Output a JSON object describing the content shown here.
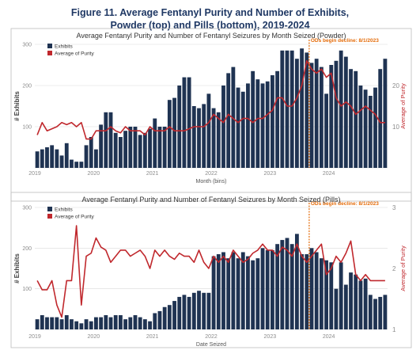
{
  "figure_title": {
    "line1": "Figure 11. Average Fentanyl Purity and Number of Exhibits,",
    "line2": "Powder (top) and Pills (bottom), 2019-2024"
  },
  "chart_data": [
    {
      "type": "bar",
      "title": "Average Fentanyl Purity and Number of Fentanyl Seizures by Month Seized (Powder)",
      "xlabel": "Month (bins)",
      "ylabel": "# Exhibits",
      "y2label": "Average of Purity",
      "x_tick_labels": [
        "2019",
        "2020",
        "2021",
        "2022",
        "2023",
        "2024"
      ],
      "y_ticks": [
        "100",
        "200",
        "300"
      ],
      "y2_ticks": [
        "10",
        "20"
      ],
      "ylim": [
        0,
        300
      ],
      "y2lim": [
        0,
        30
      ],
      "x_start_month": "2019-01",
      "marker_label": "ODs begin decline: 8/1/2023",
      "marker_month": "2023-08",
      "legend": [
        "Exhibits",
        "Average of Purity"
      ],
      "colors": {
        "bars": "#1f3352",
        "line": "#c0282d",
        "marker": "#e46c0a"
      },
      "series": [
        {
          "name": "Exhibits",
          "values": [
            40,
            45,
            50,
            55,
            45,
            30,
            60,
            20,
            15,
            15,
            55,
            75,
            45,
            105,
            135,
            135,
            85,
            75,
            90,
            100,
            100,
            80,
            85,
            95,
            120,
            100,
            100,
            165,
            170,
            200,
            220,
            220,
            150,
            145,
            155,
            180,
            145,
            135,
            200,
            230,
            245,
            195,
            185,
            205,
            235,
            215,
            205,
            210,
            225,
            235,
            285,
            285,
            285,
            265,
            290,
            280,
            255,
            265,
            245,
            180,
            250,
            260,
            285,
            270,
            240,
            235,
            200,
            190,
            175,
            195,
            240,
            265
          ]
        },
        {
          "name": "Average of Purity",
          "values": [
            8,
            11,
            9,
            9.5,
            10,
            11,
            10.5,
            11,
            10,
            11,
            7,
            7,
            9,
            9,
            9,
            10,
            9,
            8.5,
            10,
            9,
            9,
            9,
            8,
            10,
            9,
            9,
            9,
            10,
            9,
            9,
            9,
            9.5,
            10,
            10,
            10,
            11,
            13,
            12,
            11,
            13,
            12,
            11,
            12,
            12,
            11,
            12,
            12,
            13,
            14,
            17,
            17,
            15,
            15,
            17,
            20,
            26,
            24,
            23,
            24,
            22,
            23,
            17,
            15,
            16,
            15,
            13,
            14,
            15,
            14,
            13,
            11,
            11
          ]
        }
      ]
    },
    {
      "type": "bar",
      "title": "Average Fentanyl Purity and Number of Fentanyl Seizures by Month Seized (Pills)",
      "xlabel": "Date Seized",
      "ylabel": "# Exhibits",
      "y2label": "Average of Purity",
      "x_tick_labels": [
        "2019",
        "2020",
        "2021",
        "2022",
        "2023",
        "2024"
      ],
      "y_ticks": [
        "100",
        "200",
        "300"
      ],
      "y2_ticks": [
        "1",
        "2",
        "3"
      ],
      "ylim": [
        0,
        300
      ],
      "y2lim": [
        1,
        3
      ],
      "x_start_month": "2019-01",
      "marker_label": "ODs begin decline: 8/1/2023",
      "marker_month": "2023-08",
      "legend": [
        "Exhibits",
        "Average of Purity"
      ],
      "colors": {
        "bars": "#1f3352",
        "line": "#c0282d",
        "marker": "#e46c0a"
      },
      "series": [
        {
          "name": "Exhibits",
          "values": [
            25,
            35,
            30,
            30,
            30,
            25,
            35,
            25,
            20,
            15,
            25,
            20,
            30,
            30,
            35,
            30,
            35,
            35,
            25,
            30,
            35,
            30,
            25,
            20,
            40,
            45,
            55,
            60,
            70,
            80,
            85,
            80,
            90,
            95,
            90,
            90,
            180,
            185,
            190,
            175,
            190,
            175,
            190,
            180,
            170,
            175,
            200,
            195,
            195,
            210,
            220,
            225,
            210,
            235,
            185,
            185,
            200,
            190,
            175,
            170,
            165,
            100,
            165,
            110,
            140,
            135,
            120,
            125,
            85,
            75,
            80,
            85
          ]
        },
        {
          "name": "Average of Purity",
          "values": [
            1.8,
            1.65,
            1.65,
            1.8,
            1.4,
            1.2,
            1.8,
            1.8,
            2.7,
            1.4,
            2.2,
            2.25,
            2.5,
            2.35,
            2.3,
            2.1,
            2.2,
            2.3,
            2.3,
            2.2,
            2.25,
            2.3,
            2.2,
            2.0,
            2.3,
            2.2,
            2.3,
            2.2,
            2.15,
            2.25,
            2.2,
            2.2,
            2.1,
            2.3,
            2.1,
            2.0,
            2.2,
            2.1,
            2.2,
            2.1,
            2.3,
            2.2,
            2.1,
            2.15,
            2.25,
            2.3,
            2.4,
            2.3,
            2.3,
            2.2,
            2.35,
            2.3,
            2.2,
            2.4,
            2.2,
            2.1,
            2.2,
            2.3,
            2.4,
            1.9,
            2.0,
            2.2,
            2.1,
            2.25,
            2.45,
            1.9,
            1.8,
            1.9,
            1.8,
            1.8,
            1.8,
            1.8
          ]
        }
      ]
    }
  ]
}
